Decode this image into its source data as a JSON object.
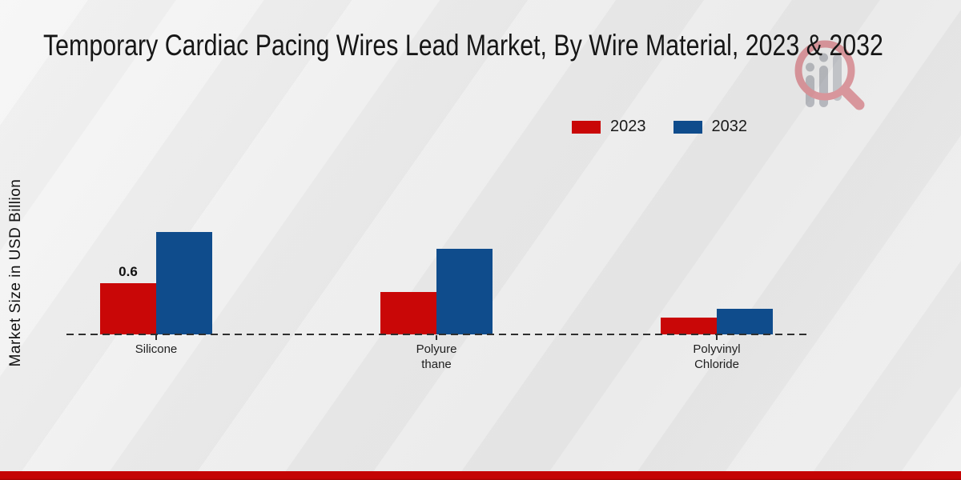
{
  "title": "Temporary Cardiac Pacing Wires Lead Market, By Wire Material, 2023 & 2032",
  "y_axis": {
    "label": "Market Size in USD Billion"
  },
  "legend": {
    "items": [
      {
        "label": "2023",
        "color": "#c90707"
      },
      {
        "label": "2032",
        "color": "#0f4c8c"
      }
    ]
  },
  "watermark": {
    "icon": "magnifier-bar-chart-logo"
  },
  "footer": {
    "accent_color": "#c40404"
  },
  "chart_data": {
    "type": "bar",
    "title": "Temporary Cardiac Pacing Wires Lead Market, By Wire Material, 2023 & 2032",
    "xlabel": "",
    "ylabel": "Market Size in USD Billion",
    "categories": [
      "Silicone",
      "Polyurethane",
      "Polyvinyl Chloride"
    ],
    "category_display_lines": [
      [
        "Silicone"
      ],
      [
        "Polyure",
        "thane"
      ],
      [
        "Polyvinyl",
        "Chloride"
      ]
    ],
    "series": [
      {
        "name": "2023",
        "color": "#c90707",
        "values": [
          0.6,
          0.5,
          0.2
        ]
      },
      {
        "name": "2032",
        "color": "#0f4c8c",
        "values": [
          1.2,
          1.0,
          0.3
        ]
      }
    ],
    "value_labels": [
      {
        "series_index": 0,
        "category_index": 0,
        "text": "0.6"
      }
    ],
    "ylim": [
      0,
      1.35
    ],
    "grid": false,
    "legend_position": "top-right",
    "baseline_style": "dashed-zero-line"
  }
}
